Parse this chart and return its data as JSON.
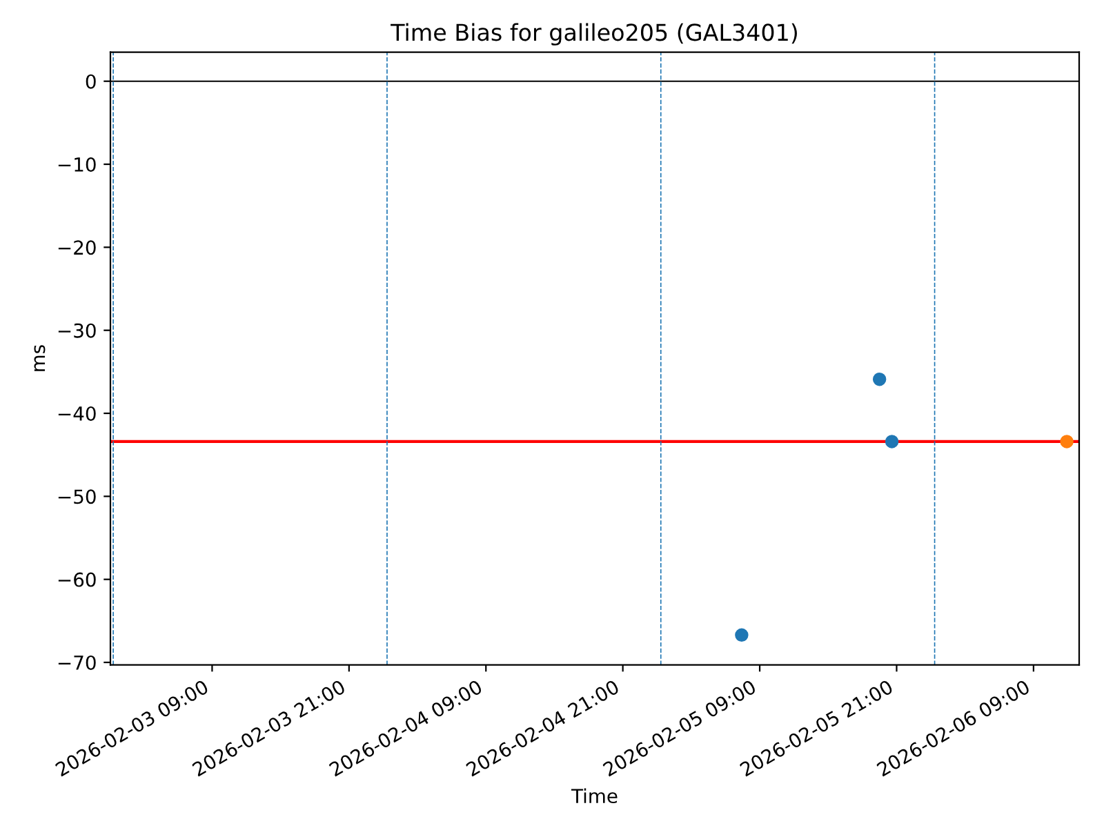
{
  "chart_data": {
    "type": "scatter",
    "title": "Time Bias for galileo205 (GAL3401)",
    "xlabel": "Time",
    "ylabel": "ms",
    "series": [
      {
        "color": "#1f77b4",
        "x": [
          "2026-02-05T07:25",
          "2026-02-05T19:30",
          "2026-02-05T20:35"
        ],
        "values": [
          -66.7,
          -35.9,
          -43.4
        ]
      },
      {
        "color": "#ff7f0e",
        "x": [
          "2026-02-06T11:55"
        ],
        "values": [
          -43.4
        ]
      }
    ],
    "ref_lines": [
      {
        "axis": "y",
        "value": 0,
        "color": "#000000",
        "line_style": "solid"
      },
      {
        "axis": "y",
        "value": -43.4,
        "color": "#ff0000",
        "line_style": "solid"
      },
      {
        "axis": "x",
        "value": "2026-02-03T00:20",
        "color": "#1f77b4",
        "line_style": "dashed"
      },
      {
        "axis": "x",
        "value": "2026-02-04T00:20",
        "color": "#1f77b4",
        "line_style": "dashed"
      },
      {
        "axis": "x",
        "value": "2026-02-05T00:20",
        "color": "#1f77b4",
        "line_style": "dashed"
      },
      {
        "axis": "x",
        "value": "2026-02-06T00:20",
        "color": "#1f77b4",
        "line_style": "dashed"
      }
    ],
    "xlim": [
      "2026-02-03T00:05",
      "2026-02-06T13:00"
    ],
    "xticks": [
      {
        "value": "2026-02-03T09:00",
        "label": "2026-02-03 09:00"
      },
      {
        "value": "2026-02-03T21:00",
        "label": "2026-02-03 21:00"
      },
      {
        "value": "2026-02-04T09:00",
        "label": "2026-02-04 09:00"
      },
      {
        "value": "2026-02-04T21:00",
        "label": "2026-02-04 21:00"
      },
      {
        "value": "2026-02-05T09:00",
        "label": "2026-02-05 09:00"
      },
      {
        "value": "2026-02-05T21:00",
        "label": "2026-02-05 21:00"
      },
      {
        "value": "2026-02-06T09:00",
        "label": "2026-02-06 09:00"
      }
    ],
    "ylim": [
      -70.3,
      3.5
    ],
    "yticks": [
      {
        "value": 0,
        "label": "0"
      },
      {
        "value": -10,
        "label": "−10"
      },
      {
        "value": -20,
        "label": "−20"
      },
      {
        "value": -30,
        "label": "−30"
      },
      {
        "value": -40,
        "label": "−40"
      },
      {
        "value": -50,
        "label": "−50"
      },
      {
        "value": -60,
        "label": "−60"
      },
      {
        "value": -70,
        "label": "−70"
      }
    ],
    "marker": "circle",
    "grid": false,
    "legend": false
  }
}
